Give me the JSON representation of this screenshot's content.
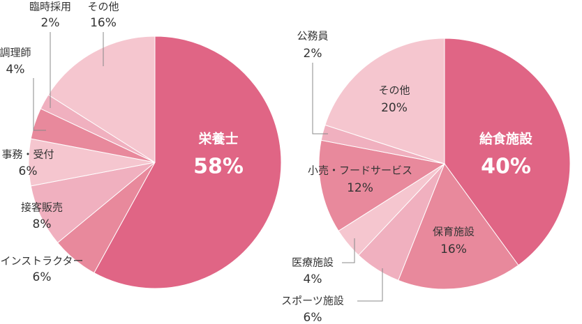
{
  "chart_data": [
    {
      "type": "pie",
      "categories": [
        "栄養士",
        "インストラクター",
        "接客販売",
        "事務・受付",
        "調理師",
        "臨時採用",
        "その他"
      ],
      "values": [
        58,
        6,
        8,
        6,
        4,
        2,
        16
      ],
      "value_labels": [
        "58%",
        "6%",
        "8%",
        "6%",
        "4%",
        "2%",
        "16%"
      ],
      "colors": [
        "#e06585",
        "#e8899c",
        "#f0b0bf",
        "#f5c6cf",
        "#e8899c",
        "#f0b0bf",
        "#f5c6cf"
      ]
    },
    {
      "type": "pie",
      "categories": [
        "給食施設",
        "保育施設",
        "スポーツ施設",
        "医療施設",
        "小売・フードサービス",
        "公務員",
        "その他"
      ],
      "values": [
        40,
        16,
        6,
        4,
        12,
        2,
        20
      ],
      "value_labels": [
        "40%",
        "16%",
        "6%",
        "4%",
        "12%",
        "2%",
        "20%"
      ],
      "colors": [
        "#e06585",
        "#e8899c",
        "#f0b0bf",
        "#f5c6cf",
        "#e8899c",
        "#f0b0bf",
        "#f5c6cf"
      ]
    }
  ]
}
